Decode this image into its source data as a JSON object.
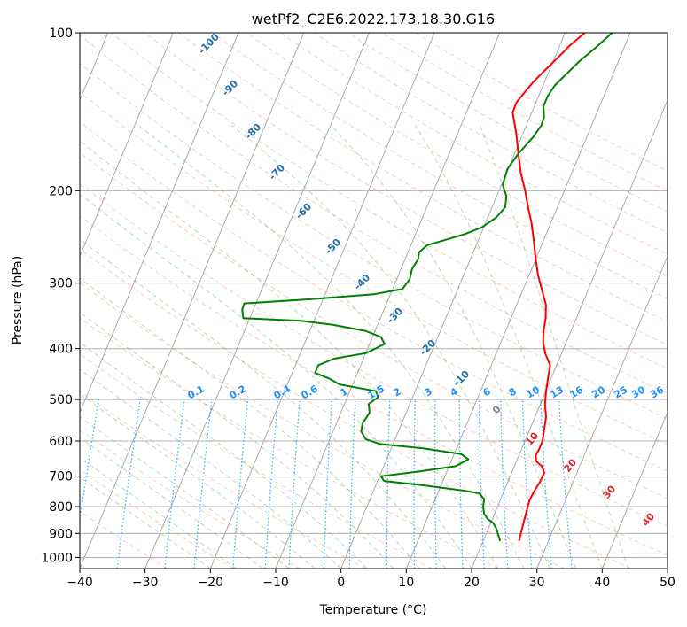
{
  "chart_data": {
    "type": "line",
    "title": "wetPf2_C2E6.2022.173.18.30.G16",
    "xlabel": "Temperature (°C)",
    "ylabel": "Pressure (hPa)",
    "xlim": [
      -40,
      50
    ],
    "ylim": [
      1050,
      100
    ],
    "y_scale": "log",
    "grid": true,
    "x_ticks": [
      "−40",
      "−30",
      "−20",
      "−10",
      "0",
      "10",
      "20",
      "30",
      "40",
      "50"
    ],
    "y_ticks": [
      {
        "p": 100,
        "label": "100"
      },
      {
        "p": 200,
        "label": "200"
      },
      {
        "p": 300,
        "label": "300"
      },
      {
        "p": 400,
        "label": "400"
      },
      {
        "p": 500,
        "label": "500"
      },
      {
        "p": 600,
        "label": "600"
      },
      {
        "p": 700,
        "label": "700"
      },
      {
        "p": 800,
        "label": "800"
      },
      {
        "p": 900,
        "label": "900"
      },
      {
        "p": 1000,
        "label": "1000"
      }
    ],
    "series": [
      {
        "role": "temperature",
        "color": "#ff0000",
        "points": [
          [
            25.5,
            930
          ],
          [
            25.3,
            900
          ],
          [
            25.1,
            870
          ],
          [
            24.9,
            840
          ],
          [
            24.7,
            810
          ],
          [
            24.5,
            780
          ],
          [
            24.6,
            750
          ],
          [
            24.9,
            720
          ],
          [
            25.0,
            690
          ],
          [
            24.2,
            670
          ],
          [
            23.0,
            655
          ],
          [
            22.6,
            640
          ],
          [
            22.7,
            620
          ],
          [
            22.7,
            600
          ],
          [
            22.2,
            570
          ],
          [
            21.7,
            540
          ],
          [
            20.7,
            510
          ],
          [
            20.0,
            480
          ],
          [
            19.4,
            450
          ],
          [
            19.0,
            430
          ],
          [
            17.6,
            410
          ],
          [
            16.5,
            390
          ],
          [
            15.8,
            370
          ],
          [
            15.3,
            350
          ],
          [
            14.5,
            330
          ],
          [
            13.0,
            310
          ],
          [
            11.4,
            290
          ],
          [
            10.0,
            270
          ],
          [
            8.6,
            250
          ],
          [
            7.0,
            230
          ],
          [
            5.5,
            215
          ],
          [
            4.0,
            200
          ],
          [
            2.2,
            185
          ],
          [
            0.6,
            170
          ],
          [
            -1.1,
            155
          ],
          [
            -2.9,
            142
          ],
          [
            -3.0,
            136
          ],
          [
            -2.4,
            130
          ],
          [
            -1.7,
            124
          ],
          [
            -0.7,
            118
          ],
          [
            0.4,
            112
          ],
          [
            1.5,
            106
          ],
          [
            3.0,
            100
          ]
        ]
      },
      {
        "role": "dewpoint",
        "color": "#008000",
        "points": [
          [
            22.6,
            930
          ],
          [
            21.9,
            905
          ],
          [
            21.2,
            880
          ],
          [
            20.4,
            860
          ],
          [
            19.3,
            845
          ],
          [
            18.4,
            825
          ],
          [
            17.8,
            800
          ],
          [
            17.5,
            775
          ],
          [
            16.4,
            755
          ],
          [
            13.6,
            745
          ],
          [
            7.0,
            728
          ],
          [
            1.0,
            715
          ],
          [
            0.2,
            700
          ],
          [
            6.0,
            685
          ],
          [
            11.0,
            670
          ],
          [
            12.5,
            650
          ],
          [
            11.0,
            635
          ],
          [
            5.0,
            620
          ],
          [
            -2.0,
            608
          ],
          [
            -4.5,
            595
          ],
          [
            -5.7,
            575
          ],
          [
            -6.0,
            555
          ],
          [
            -5.6,
            530
          ],
          [
            -6.3,
            510
          ],
          [
            -5.3,
            495
          ],
          [
            -6.0,
            482
          ],
          [
            -12.0,
            468
          ],
          [
            -14.0,
            456
          ],
          [
            -16.5,
            445
          ],
          [
            -16.5,
            430
          ],
          [
            -14.5,
            418
          ],
          [
            -10.0,
            408
          ],
          [
            -7.7,
            392
          ],
          [
            -8.7,
            380
          ],
          [
            -11.5,
            370
          ],
          [
            -17.0,
            360
          ],
          [
            -22.0,
            354
          ],
          [
            -31.0,
            350
          ],
          [
            -31.7,
            337
          ],
          [
            -31.8,
            328
          ],
          [
            -22.0,
            322
          ],
          [
            -12.5,
            315
          ],
          [
            -8.5,
            308
          ],
          [
            -8.0,
            295
          ],
          [
            -8.3,
            282
          ],
          [
            -8.0,
            270
          ],
          [
            -8.3,
            262
          ],
          [
            -7.5,
            254
          ],
          [
            -5.0,
            248
          ],
          [
            -2.5,
            242
          ],
          [
            -0.3,
            235
          ],
          [
            1.3,
            225
          ],
          [
            2.0,
            215
          ],
          [
            1.5,
            205
          ],
          [
            0.2,
            195
          ],
          [
            -0.1,
            182
          ],
          [
            0.6,
            170
          ],
          [
            1.8,
            158
          ],
          [
            2.3,
            150
          ],
          [
            2.2,
            145
          ],
          [
            1.4,
            138
          ],
          [
            1.4,
            132
          ],
          [
            1.8,
            126
          ],
          [
            2.8,
            120
          ],
          [
            4.1,
            113
          ],
          [
            5.6,
            107
          ],
          [
            6.5,
            103
          ],
          [
            7.2,
            100
          ]
        ]
      }
    ],
    "dry_adiabat_labels": [
      "-100",
      "-90",
      "-80",
      "-70",
      "-60",
      "-50",
      "-40",
      "-30",
      "-20",
      "-10"
    ],
    "moist_adiabat_labels": [
      "0",
      "10",
      "20",
      "30",
      "40"
    ],
    "mixing_ratio_labels": [
      "0.1",
      "0.2",
      "0.4",
      "0.6",
      "1",
      "1.5",
      "2",
      "3",
      "4",
      "6",
      "8",
      "10",
      "13",
      "16",
      "20",
      "25",
      "30",
      "36"
    ],
    "colors": {
      "isotherm": "#aaaaaa",
      "dry_adiabat": "#ff8c69",
      "moist_adiabat": "#2ca02c",
      "mixing_ratio": "#1e90ff",
      "dry_label": "#1f6fa8",
      "moist_label": "#d62728"
    }
  }
}
